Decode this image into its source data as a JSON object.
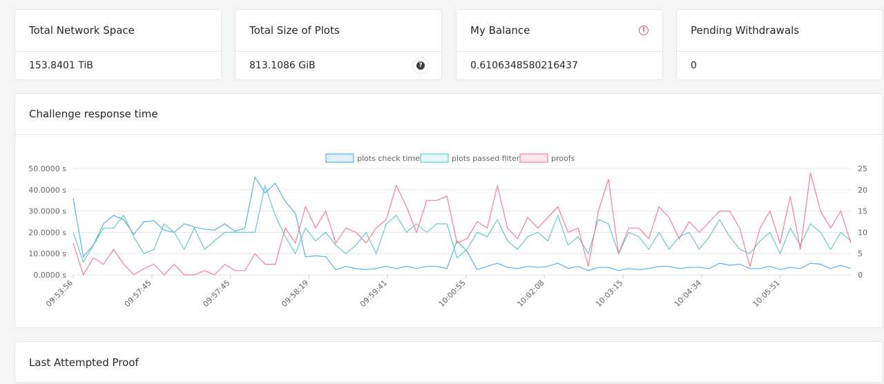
{
  "stats": [
    {
      "title": "Total Network Space",
      "value": "153.8401 TiB",
      "icon": ""
    },
    {
      "title": "Total Size of Plots",
      "value": "813.1086 GiB",
      "icon": "question-circle-icon"
    },
    {
      "title": "My Balance",
      "value": "0.6106348580216437",
      "icon": "exclamation-circle-icon"
    },
    {
      "title": "Pending Withdrawals",
      "value": "0",
      "icon": ""
    }
  ],
  "chart_card": {
    "title": "Challenge response time"
  },
  "bottom_card": {
    "title": "Last Attempted Proof"
  },
  "chart_data": {
    "type": "line",
    "title": "",
    "legend_position": "top",
    "grid": true,
    "y_left": {
      "min": 0,
      "max": 50,
      "ticks": [
        "0.0000 s",
        "10.0000 s",
        "20.0000 s",
        "30.0000 s",
        "40.0000 s",
        "50.0000 s"
      ]
    },
    "y_right": {
      "min": 0,
      "max": 25,
      "ticks": [
        "0",
        "5",
        "10",
        "15",
        "20",
        "25"
      ]
    },
    "x_tick_labels": [
      "09:53:56",
      "09:57:45",
      "09:57:45",
      "09:58:19",
      "09:59:41",
      "10:00:55",
      "10:02:08",
      "10:03:15",
      "10:04:34",
      "10:05:51"
    ],
    "series": [
      {
        "name": "plots check time",
        "axis": "left",
        "color": "#36a2eb",
        "values": [
          36,
          8.5,
          14,
          24,
          28,
          26,
          19,
          25,
          25.5,
          21,
          20,
          24,
          22.5,
          21.5,
          21,
          24,
          20.5,
          22,
          46,
          38.5,
          43,
          34.5,
          29,
          8.5,
          9,
          8.5,
          2.5,
          4,
          3,
          2.5,
          3,
          4,
          3,
          4,
          3,
          4,
          4,
          3,
          16,
          11,
          2.5,
          4,
          5.5,
          3.5,
          3,
          4,
          3.5,
          4,
          5.5,
          3,
          4,
          2,
          3.5,
          3.5,
          2,
          3,
          2.5,
          3,
          4,
          4,
          3,
          3.5,
          3.5,
          3,
          5.5,
          4.5,
          5,
          3,
          3,
          4,
          2.5,
          3.5,
          3,
          5.5,
          5,
          3,
          4.5,
          3
        ]
      },
      {
        "name": "plots passed filter",
        "axis": "right",
        "color": "#4bc0c0",
        "values": [
          10,
          3,
          7,
          11,
          11,
          14,
          9,
          5,
          6,
          12,
          10,
          6,
          11,
          6,
          8,
          10,
          10,
          10,
          10,
          21,
          14,
          9,
          5,
          11,
          8,
          10,
          7,
          5,
          7,
          10,
          5,
          12,
          14,
          10,
          12,
          10,
          12,
          12,
          4,
          6,
          10,
          9,
          13,
          8,
          6,
          9,
          10,
          8,
          14,
          7,
          9,
          5,
          13,
          12,
          5,
          10,
          9,
          6,
          10,
          6,
          9,
          10,
          6,
          9,
          13,
          9,
          6,
          5,
          8,
          10,
          5,
          11,
          7,
          12,
          10,
          6,
          10,
          8
        ]
      },
      {
        "name": "proofs",
        "axis": "right",
        "color": "#ff6384",
        "values": [
          7.5,
          0,
          4,
          2.5,
          6,
          2.5,
          0,
          1.5,
          2.5,
          0,
          2.5,
          0,
          0,
          1,
          0,
          2.5,
          1,
          1,
          5,
          2.5,
          2.5,
          11,
          7.5,
          16,
          11,
          15,
          7.5,
          11,
          10,
          7.5,
          11,
          13,
          21,
          16,
          10,
          17.5,
          17.5,
          18.5,
          7.5,
          8.5,
          12.5,
          11,
          21,
          11,
          8.5,
          13.5,
          11,
          13.5,
          16,
          10,
          11,
          2,
          15,
          22.5,
          5,
          11,
          11,
          8.5,
          16,
          13.5,
          8.5,
          12.5,
          10,
          12.5,
          15,
          15,
          11,
          2,
          11,
          15,
          7.5,
          18.5,
          6,
          24,
          15,
          11,
          15,
          7.5
        ]
      }
    ]
  }
}
